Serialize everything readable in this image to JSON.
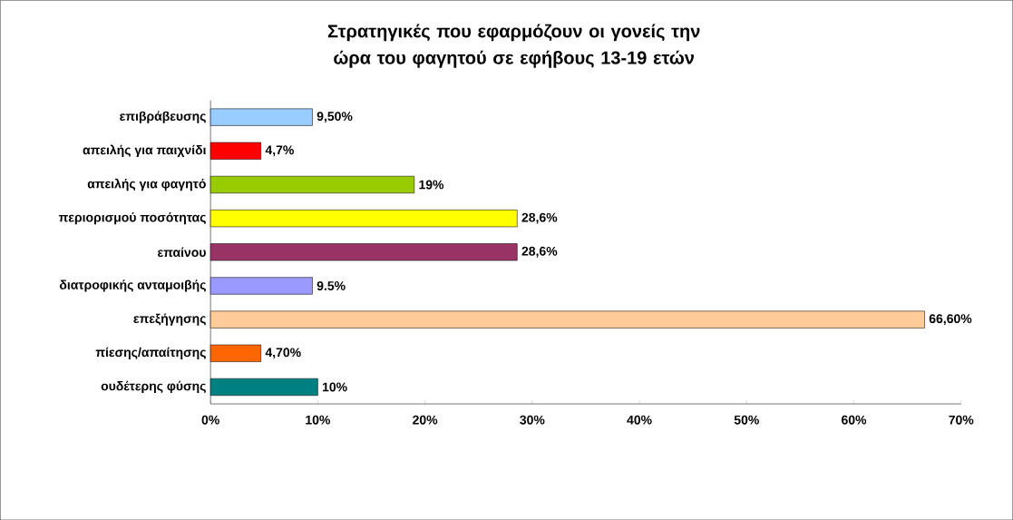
{
  "chart_data": {
    "type": "bar",
    "orientation": "horizontal",
    "title": "Στρατηγικές που εφαρμόζουν οι γονείς την ώρα του φαγητού σε εφήβους 13-19 ετών",
    "categories": [
      "επιβράβευσης",
      "απειλής για παιχνίδι",
      "απειλής για φαγητό",
      "περιορισμού ποσότητας",
      "επαίνου",
      "διατροφικής ανταμοιβής",
      "επεξήγησης",
      "πίεσης/απαίτησης",
      "ουδέτερης φύσης"
    ],
    "values": [
      9.5,
      4.7,
      19,
      28.6,
      28.6,
      9.5,
      66.6,
      4.7,
      10
    ],
    "value_labels": [
      "9,50%",
      "4,7%",
      "19%",
      "28,6%",
      "28,6%",
      "9.5%",
      "66,60%",
      "4,70%",
      "10%"
    ],
    "colors": [
      "#99ccff",
      "#ff0000",
      "#99cc00",
      "#ffff00",
      "#993366",
      "#9999ff",
      "#ffcc99",
      "#ff6600",
      "#008080"
    ],
    "xlim": [
      0,
      70
    ],
    "xticks": [
      {
        "value": 0,
        "label": "0%"
      },
      {
        "value": 10,
        "label": "10%"
      },
      {
        "value": 20,
        "label": "20%"
      },
      {
        "value": 30,
        "label": "30%"
      },
      {
        "value": 40,
        "label": "40%"
      },
      {
        "value": 50,
        "label": "50%"
      },
      {
        "value": 60,
        "label": "60%"
      },
      {
        "value": 70,
        "label": "70%"
      }
    ],
    "grid": false
  }
}
